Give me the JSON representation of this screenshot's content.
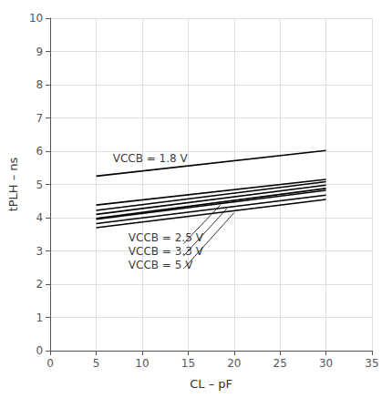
{
  "chart_data": {
    "type": "line",
    "xlabel": "CL – pF",
    "ylabel": "tPLH – ns",
    "xlim": [
      0,
      35
    ],
    "ylim": [
      0,
      10
    ],
    "xticks": [
      0,
      5,
      10,
      15,
      20,
      25,
      30,
      35
    ],
    "yticks": [
      0,
      1,
      2,
      3,
      4,
      5,
      6,
      7,
      8,
      9,
      10
    ],
    "grid": true,
    "x": [
      5,
      30
    ],
    "series": [
      {
        "color": "#000000",
        "values": [
          5.25,
          6.02
        ]
      },
      {
        "color": "#000000",
        "values": [
          4.38,
          5.15
        ]
      },
      {
        "color": "#000000",
        "values": [
          4.22,
          5.08
        ]
      },
      {
        "color": "#000000",
        "values": [
          3.95,
          4.82
        ]
      },
      {
        "color": "#000000",
        "values": [
          4.1,
          4.98
        ]
      },
      {
        "color": "#000000",
        "values": [
          3.82,
          4.68
        ]
      },
      {
        "color": "#000000",
        "values": [
          3.98,
          4.88
        ]
      },
      {
        "color": "#000000",
        "values": [
          3.7,
          4.55
        ]
      }
    ],
    "annotations": [
      {
        "text": "VCCB = 1.8 V",
        "x": 6.8,
        "y": 5.62
      },
      {
        "text": "VCCB = 2.5 V",
        "x": 8.5,
        "y": 3.22,
        "leader": [
          [
            14.5,
            3.22
          ],
          [
            18.5,
            4.38
          ]
        ]
      },
      {
        "text": "VCCB = 3.3 V",
        "x": 8.5,
        "y": 2.82,
        "leader": [
          [
            14.5,
            2.85
          ],
          [
            19.2,
            4.27
          ]
        ]
      },
      {
        "text": "VCCB = 5 V",
        "x": 8.5,
        "y": 2.42,
        "leader": [
          [
            14.5,
            2.46
          ],
          [
            20.0,
            4.15
          ]
        ]
      }
    ]
  }
}
